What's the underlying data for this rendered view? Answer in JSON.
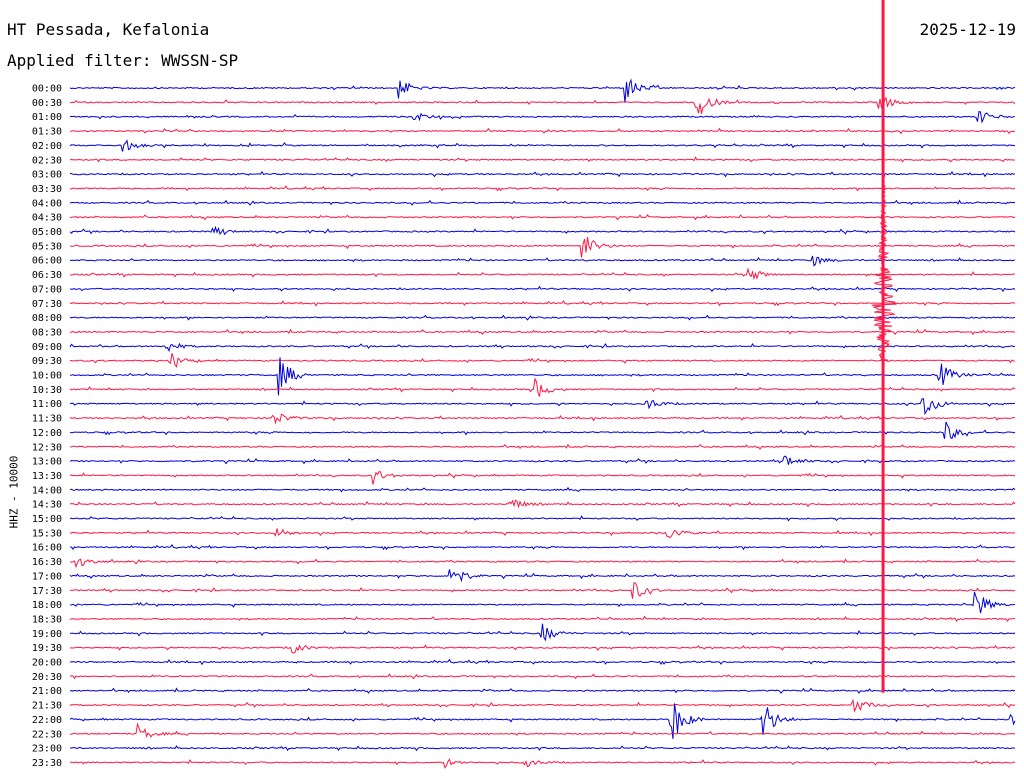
{
  "header": {
    "station": "HT Pessada, Kefalonia",
    "date": "2025-12-19",
    "filter": "Applied filter: WWSSN-SP"
  },
  "chart_data": {
    "type": "line",
    "title": "HT Pessada, Kefalonia",
    "date": "2025-12-19",
    "subtitle": "Applied filter: WWSSN-SP",
    "ylabel": "HHZ - 10000",
    "row_labels": [
      "00:00",
      "00:30",
      "01:00",
      "01:30",
      "02:00",
      "02:30",
      "03:00",
      "03:30",
      "04:00",
      "04:30",
      "05:00",
      "05:30",
      "06:00",
      "06:30",
      "07:00",
      "07:30",
      "08:00",
      "08:30",
      "09:00",
      "09:30",
      "10:00",
      "10:30",
      "11:00",
      "11:30",
      "12:00",
      "12:30",
      "13:00",
      "13:30",
      "14:00",
      "14:30",
      "15:00",
      "15:30",
      "16:00",
      "16:30",
      "17:00",
      "17:30",
      "18:00",
      "18:30",
      "19:00",
      "19:30",
      "20:00",
      "20:30",
      "21:00",
      "21:30",
      "22:00",
      "22:30",
      "23:00",
      "23:30"
    ],
    "minutes_per_row": 30,
    "colors": [
      "#0000dd",
      "#ff1744"
    ],
    "events": [
      {
        "row": 0,
        "minute": 10.4,
        "amp": 0.8
      },
      {
        "row": 0,
        "minute": 17.6,
        "amp": 1.1
      },
      {
        "row": 1,
        "minute": 19.8,
        "amp": 1.6
      },
      {
        "row": 1,
        "minute": 25.6,
        "amp": 0.9
      },
      {
        "row": 2,
        "minute": 10.8,
        "amp": 0.5
      },
      {
        "row": 2,
        "minute": 28.7,
        "amp": 0.8
      },
      {
        "row": 4,
        "minute": 1.6,
        "amp": 0.6
      },
      {
        "row": 10,
        "minute": 4.5,
        "amp": 0.4
      },
      {
        "row": 11,
        "minute": 16.2,
        "amp": 1.3
      },
      {
        "row": 12,
        "minute": 23.5,
        "amp": 0.5
      },
      {
        "row": 13,
        "minute": 21.5,
        "amp": 0.6
      },
      {
        "row": 18,
        "minute": 3.0,
        "amp": 0.6
      },
      {
        "row": 19,
        "minute": 3.1,
        "amp": 0.7
      },
      {
        "row": 20,
        "minute": 6.6,
        "amp": 1.5
      },
      {
        "row": 20,
        "minute": 27.5,
        "amp": 1.3
      },
      {
        "row": 21,
        "minute": 14.7,
        "amp": 0.9
      },
      {
        "row": 22,
        "minute": 18.2,
        "amp": 0.6
      },
      {
        "row": 22,
        "minute": 27.0,
        "amp": 1.4
      },
      {
        "row": 23,
        "minute": 6.4,
        "amp": 0.7
      },
      {
        "row": 24,
        "minute": 27.7,
        "amp": 1.0
      },
      {
        "row": 26,
        "minute": 22.6,
        "amp": 0.6
      },
      {
        "row": 27,
        "minute": 9.6,
        "amp": 0.6
      },
      {
        "row": 29,
        "minute": 13.9,
        "amp": 0.6
      },
      {
        "row": 31,
        "minute": 6.5,
        "amp": 0.5
      },
      {
        "row": 31,
        "minute": 18.9,
        "amp": 0.6
      },
      {
        "row": 33,
        "minute": 0.1,
        "amp": 0.9
      },
      {
        "row": 34,
        "minute": 12.0,
        "amp": 1.3
      },
      {
        "row": 35,
        "minute": 17.8,
        "amp": 0.9
      },
      {
        "row": 36,
        "minute": 28.6,
        "amp": 1.6
      },
      {
        "row": 38,
        "minute": 14.9,
        "amp": 0.9
      },
      {
        "row": 39,
        "minute": 7.0,
        "amp": 0.5
      },
      {
        "row": 43,
        "minute": 24.8,
        "amp": 0.7
      },
      {
        "row": 44,
        "minute": 19.0,
        "amp": 2.3
      },
      {
        "row": 44,
        "minute": 21.9,
        "amp": 2.0
      },
      {
        "row": 44,
        "minute": 29.8,
        "amp": 1.0
      },
      {
        "row": 45,
        "minute": 2.1,
        "amp": 0.8
      },
      {
        "row": 47,
        "minute": 11.8,
        "amp": 0.4
      },
      {
        "row": 47,
        "minute": 14.4,
        "amp": 0.4
      }
    ],
    "major_event": {
      "start_row": 0,
      "end_row": 42,
      "minute": 25.8,
      "peak_row": 15
    }
  }
}
